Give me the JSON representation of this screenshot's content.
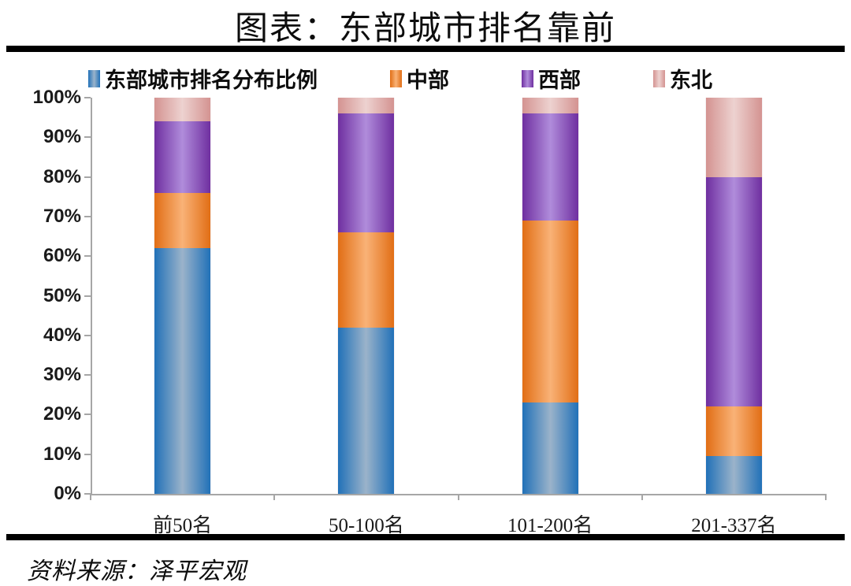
{
  "title": "图表：东部城市排名靠前",
  "source": "资料来源：泽平宏观",
  "chart_data": {
    "type": "bar",
    "stacked": true,
    "percent_stacked": true,
    "title": "图表：东部城市排名靠前",
    "categories": [
      "前50名",
      "50-100名",
      "101-200名",
      "201-337名"
    ],
    "series": [
      {
        "key": "east",
        "name": "东部城市排名分布比例",
        "color": "#2171B8",
        "color_light": "#9BB3CA",
        "values": [
          62,
          42,
          23,
          9.5
        ]
      },
      {
        "key": "central",
        "name": "中部",
        "color": "#E16E15",
        "color_light": "#F9B277",
        "values": [
          14,
          24,
          46,
          12.5
        ]
      },
      {
        "key": "west",
        "name": "西部",
        "color": "#6F2FA0",
        "color_light": "#B08CDB",
        "values": [
          18,
          30,
          27,
          58
        ]
      },
      {
        "key": "northeast",
        "name": "东北",
        "color": "#D49391",
        "color_light": "#EDD2D0",
        "values": [
          6,
          4,
          4,
          20
        ]
      }
    ],
    "ylabel": "",
    "xlabel": "",
    "ylim": [
      0,
      100
    ],
    "y_ticks": [
      "100%",
      "90%",
      "80%",
      "70%",
      "60%",
      "50%",
      "40%",
      "30%",
      "20%",
      "10%",
      "0%"
    ],
    "grid": false,
    "legend_position": "top",
    "axis_color": "#a6a6a6"
  }
}
